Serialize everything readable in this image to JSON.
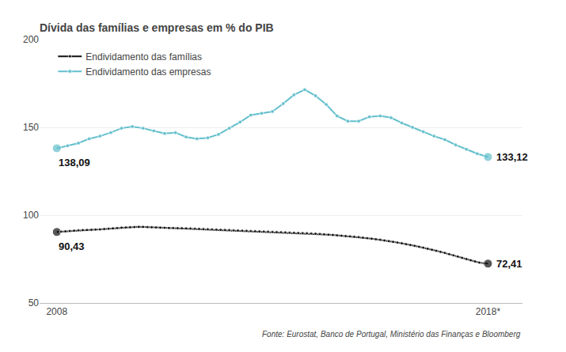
{
  "chart_data": {
    "type": "line",
    "title": "Dívida das famílias e empresas em % do PIB",
    "source": "Fonte: Eurostat, Banco de Portugal, Ministério das Finanças e Bloomberg",
    "xlim": [
      2007.6,
      2018.8
    ],
    "xticks": [
      2008,
      {
        "value": 2018,
        "label": "2018*"
      }
    ],
    "ylim": [
      50,
      200
    ],
    "yticks": [
      50,
      100,
      150,
      200
    ],
    "grid": "y",
    "legend": "upper left",
    "series": [
      {
        "name": "Endividamento das famílias",
        "color": "#111111",
        "marker": "o",
        "x": [
          2008.0,
          2008.1,
          2008.2,
          2008.3,
          2008.4,
          2008.5,
          2008.6,
          2008.7,
          2008.8,
          2008.9,
          2009.0,
          2009.1,
          2009.2,
          2009.3,
          2009.4,
          2009.5,
          2009.6,
          2009.7,
          2009.8,
          2009.9,
          2010.0,
          2010.1,
          2010.2,
          2010.3,
          2010.4,
          2010.5,
          2010.6,
          2010.7,
          2010.8,
          2010.9,
          2011.0,
          2011.1,
          2011.2,
          2011.3,
          2011.4,
          2011.5,
          2011.6,
          2011.7,
          2011.8,
          2011.9,
          2012.0,
          2012.1,
          2012.2,
          2012.3,
          2012.4,
          2012.5,
          2012.6,
          2012.7,
          2012.8,
          2012.9,
          2013.0,
          2013.1,
          2013.2,
          2013.3,
          2013.4,
          2013.5,
          2013.6,
          2013.7,
          2013.8,
          2013.9,
          2014.0,
          2014.1,
          2014.2,
          2014.3,
          2014.4,
          2014.5,
          2014.6,
          2014.7,
          2014.8,
          2014.9,
          2015.0,
          2015.1,
          2015.2,
          2015.3,
          2015.4,
          2015.5,
          2015.6,
          2015.7,
          2015.8,
          2015.9,
          2016.0,
          2016.1,
          2016.2,
          2016.3,
          2016.4,
          2016.5,
          2016.6,
          2016.7,
          2016.8,
          2016.9,
          2017.0,
          2017.1,
          2017.2,
          2017.3,
          2017.4,
          2017.5,
          2017.6,
          2017.7,
          2017.8,
          2017.9,
          2018.0
        ],
        "values": [
          90.43,
          90.6,
          90.8,
          91.0,
          91.2,
          91.4,
          91.5,
          91.6,
          91.7,
          91.8,
          91.9,
          92.1,
          92.3,
          92.5,
          92.7,
          92.9,
          93.0,
          93.1,
          93.2,
          93.3,
          93.3,
          93.2,
          93.1,
          93.0,
          92.9,
          92.8,
          92.7,
          92.7,
          92.6,
          92.6,
          92.5,
          92.4,
          92.3,
          92.2,
          92.1,
          92.0,
          91.9,
          91.8,
          91.7,
          91.6,
          91.5,
          91.4,
          91.3,
          91.2,
          91.1,
          91.0,
          90.9,
          90.8,
          90.7,
          90.6,
          90.5,
          90.4,
          90.3,
          90.2,
          90.1,
          90.0,
          89.9,
          89.8,
          89.7,
          89.6,
          89.5,
          89.3,
          89.1,
          88.9,
          88.7,
          88.5,
          88.3,
          88.1,
          87.9,
          87.7,
          87.5,
          87.2,
          86.9,
          86.6,
          86.3,
          86.0,
          85.6,
          85.2,
          84.8,
          84.4,
          84.0,
          83.5,
          83.0,
          82.5,
          82.0,
          81.5,
          80.9,
          80.3,
          79.7,
          79.1,
          78.5,
          77.8,
          77.1,
          76.4,
          75.7,
          75.0,
          74.3,
          73.6,
          73.0,
          72.6,
          72.41
        ]
      },
      {
        "name": "Endividamento das empresas",
        "color": "#62bfcc",
        "marker": "o",
        "x": [
          2008.0,
          2008.25,
          2008.5,
          2008.75,
          2009.0,
          2009.25,
          2009.5,
          2009.75,
          2010.0,
          2010.25,
          2010.5,
          2010.75,
          2011.0,
          2011.25,
          2011.5,
          2011.75,
          2012.0,
          2012.25,
          2012.5,
          2012.75,
          2013.0,
          2013.25,
          2013.5,
          2013.75,
          2014.0,
          2014.25,
          2014.5,
          2014.75,
          2015.0,
          2015.25,
          2015.5,
          2015.75,
          2016.0,
          2016.25,
          2016.5,
          2016.75,
          2017.0,
          2017.25,
          2017.5,
          2017.75,
          2018.0
        ],
        "values": [
          138.09,
          139.5,
          141.0,
          143.5,
          145.0,
          147.0,
          149.5,
          150.5,
          149.5,
          148.0,
          146.5,
          147.0,
          144.5,
          143.5,
          144.0,
          146.0,
          149.5,
          153.0,
          157.0,
          158.0,
          159.0,
          163.5,
          168.5,
          171.5,
          168.0,
          163.0,
          156.5,
          153.5,
          153.5,
          156.0,
          156.5,
          155.5,
          152.5,
          150.0,
          147.5,
          145.0,
          143.0,
          140.0,
          137.5,
          135.0,
          133.12
        ]
      }
    ],
    "annotations": [
      {
        "text": "138,09",
        "x": 2008.0,
        "y": 138.09
      },
      {
        "text": "90,43",
        "x": 2008.0,
        "y": 90.43
      },
      {
        "text": "133,12",
        "x": 2018.0,
        "y": 133.12
      },
      {
        "text": "72,41",
        "x": 2018.0,
        "y": 72.41
      }
    ]
  }
}
